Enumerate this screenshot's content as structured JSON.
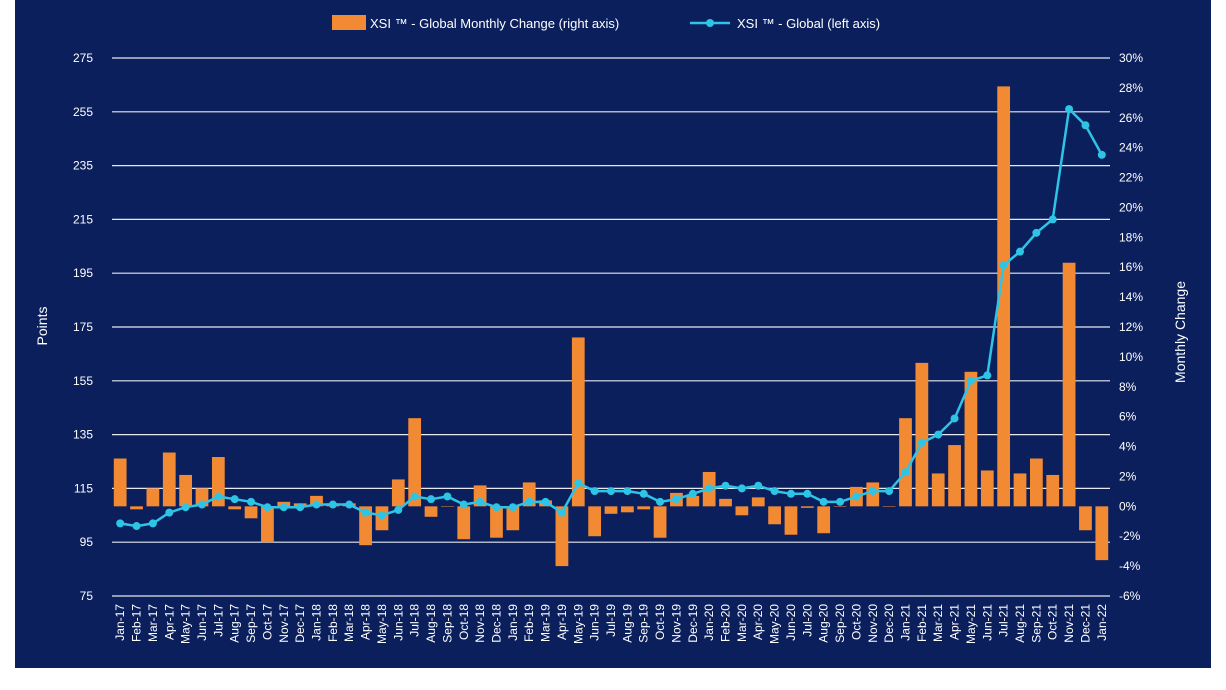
{
  "chart_data": {
    "type": "bar+line",
    "title": "",
    "colors": {
      "background": "#0b1f5c",
      "bars": "#f28a34",
      "line": "#2ec4e6",
      "grid": "#ffffff",
      "text": "#ffffff"
    },
    "legend": {
      "position": "top",
      "bar_label": "XSI ™ - Global Monthly Change (right axis)",
      "line_label": "XSI ™ - Global (left axis)"
    },
    "left_axis": {
      "label": "Points",
      "min": 75,
      "max": 275,
      "ticks": [
        "275",
        "255",
        "235",
        "215",
        "195",
        "175",
        "155",
        "135",
        "115",
        "95",
        "75"
      ]
    },
    "right_axis": {
      "label": "Monthly Change",
      "min": -6,
      "max": 30,
      "ticks": [
        "30%",
        "28%",
        "26%",
        "24%",
        "22%",
        "20%",
        "18%",
        "16%",
        "14%",
        "12%",
        "10%",
        "8%",
        "6%",
        "4%",
        "2%",
        "0%",
        "-2%",
        "-4%",
        "-6%"
      ]
    },
    "grid": true,
    "categories": [
      "Jan-17",
      "Feb-17",
      "Mar-17",
      "Apr-17",
      "May-17",
      "Jun-17",
      "Jul-17",
      "Aug-17",
      "Sep-17",
      "Oct-17",
      "Nov-17",
      "Dec-17",
      "Jan-18",
      "Feb-18",
      "Mar-18",
      "Apr-18",
      "May-18",
      "Jun-18",
      "Jul-18",
      "Aug-18",
      "Sep-18",
      "Oct-18",
      "Nov-18",
      "Dec-18",
      "Jan-19",
      "Feb-19",
      "Mar-19",
      "Apr-19",
      "May-19",
      "Jun-19",
      "Jul-19",
      "Aug-19",
      "Sep-19",
      "Oct-19",
      "Nov-19",
      "Dec-19",
      "Jan-20",
      "Feb-20",
      "Mar-20",
      "Apr-20",
      "May-20",
      "Jun-20",
      "Jul-20",
      "Aug-20",
      "Sep-20",
      "Oct-20",
      "Nov-20",
      "Dec-20",
      "Jan-21",
      "Feb-21",
      "Mar-21",
      "Apr-21",
      "May-21",
      "Jun-21",
      "Jul-21",
      "Aug-21",
      "Sep-21",
      "Oct-21",
      "Nov-21",
      "Dec-21",
      "Jan-22"
    ],
    "series": [
      {
        "name": "XSI ™ - Global Monthly Change (right axis)",
        "type": "bar",
        "axis": "right",
        "values": [
          3.2,
          -0.2,
          1.2,
          3.6,
          2.1,
          1.2,
          3.3,
          -0.2,
          -0.8,
          -2.4,
          0.3,
          0.2,
          0.7,
          0.2,
          0.2,
          -2.6,
          -1.6,
          1.8,
          5.9,
          -0.7,
          0.0,
          -2.2,
          1.4,
          -2.1,
          -1.6,
          1.6,
          0.4,
          -4.0,
          11.3,
          -2.0,
          -0.5,
          -0.4,
          -0.2,
          -2.1,
          0.9,
          0.7,
          2.3,
          0.5,
          -0.6,
          0.6,
          -1.2,
          -1.9,
          -0.1,
          -1.8,
          0.0,
          1.3,
          1.6,
          0.0,
          5.9,
          9.6,
          2.2,
          4.1,
          9.0,
          2.4,
          28.1,
          2.2,
          3.2,
          2.1,
          16.3,
          -1.6,
          -3.6
        ]
      },
      {
        "name": "XSI ™ - Global (left axis)",
        "type": "line",
        "axis": "left",
        "values": [
          102,
          101,
          102,
          106,
          108,
          109,
          112,
          111,
          110,
          108,
          108,
          108,
          109,
          109,
          109,
          106,
          105,
          107,
          112,
          111,
          112,
          109,
          110,
          108,
          108,
          110,
          110,
          106,
          117,
          114,
          114,
          114,
          113,
          110,
          111,
          113,
          115,
          116,
          115,
          116,
          114,
          113,
          113,
          110,
          110,
          112,
          114,
          114,
          121,
          132,
          135,
          141,
          155,
          157,
          198,
          203,
          210,
          215,
          256,
          250,
          239
        ]
      }
    ]
  }
}
